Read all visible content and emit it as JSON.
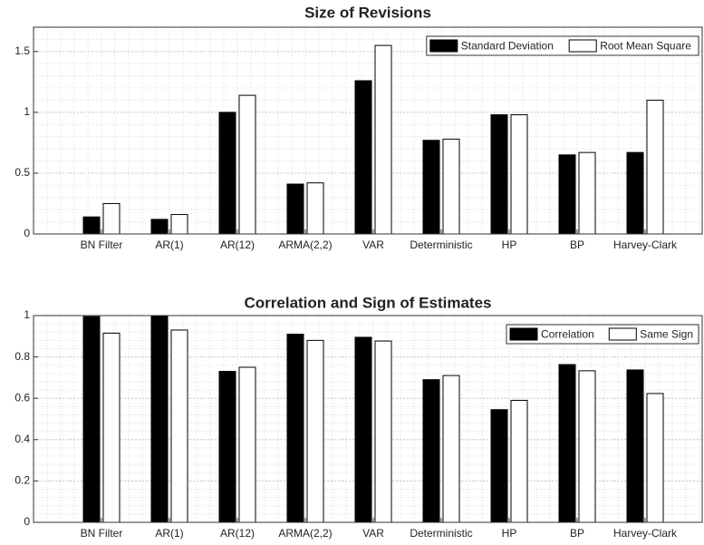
{
  "chart_data": [
    {
      "type": "bar",
      "title": "Size of Revisions",
      "categories": [
        "BN Filter",
        "AR(1)",
        "AR(12)",
        "ARMA(2,2)",
        "VAR",
        "Deterministic",
        "HP",
        "BP",
        "Harvey-Clark"
      ],
      "series": [
        {
          "name": "Standard Deviation",
          "color": "#000000",
          "values": [
            0.14,
            0.12,
            1.0,
            0.41,
            1.26,
            0.77,
            0.98,
            0.65,
            0.67
          ]
        },
        {
          "name": "Root Mean Square",
          "color": "#ffffff",
          "values": [
            0.25,
            0.16,
            1.14,
            0.42,
            1.55,
            0.78,
            0.98,
            0.67,
            1.1
          ]
        }
      ],
      "ylim": [
        0,
        1.7
      ],
      "yticks": [
        0,
        0.5,
        1,
        1.5
      ],
      "grid": true,
      "legend": "top-right"
    },
    {
      "type": "bar",
      "title": "Correlation and Sign of Estimates",
      "categories": [
        "BN Filter",
        "AR(1)",
        "AR(12)",
        "ARMA(2,2)",
        "VAR",
        "Deterministic",
        "HP",
        "BP",
        "Harvey-Clark"
      ],
      "series": [
        {
          "name": "Correlation",
          "color": "#000000",
          "values": [
            0.995,
            1.0,
            0.73,
            0.91,
            0.895,
            0.69,
            0.545,
            0.763,
            0.737
          ]
        },
        {
          "name": "Same Sign",
          "color": "#ffffff",
          "values": [
            0.915,
            0.93,
            0.75,
            0.88,
            0.877,
            0.71,
            0.59,
            0.733,
            0.623
          ]
        }
      ],
      "ylim": [
        0,
        1
      ],
      "yticks": [
        0,
        0.2,
        0.4,
        0.6,
        0.8,
        1
      ],
      "grid": true,
      "legend": "top-right"
    }
  ]
}
